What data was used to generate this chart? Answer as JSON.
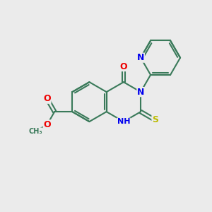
{
  "bg_color": "#ebebeb",
  "bond_color": "#3a7a5a",
  "bond_width": 1.5,
  "atom_colors": {
    "N": "#0000ee",
    "O": "#ee0000",
    "S": "#bbbb00",
    "C": "#3a7a5a"
  },
  "font_size": 9
}
